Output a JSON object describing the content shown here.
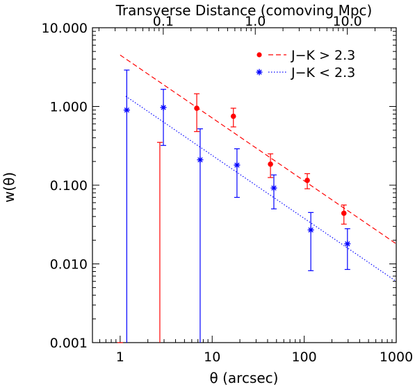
{
  "chart_data": {
    "type": "scatter",
    "title": "",
    "xlabel": "θ (arcsec)",
    "ylabel": "w(θ)",
    "top_axis_label": "Transverse Distance (comoving Mpc)",
    "x_scale": "log",
    "y_scale": "log",
    "xlim": [
      0.5,
      1000
    ],
    "ylim": [
      0.001,
      10
    ],
    "x_ticks": [
      {
        "value": 1,
        "label": "1"
      },
      {
        "value": 10,
        "label": "10"
      },
      {
        "value": 100,
        "label": "100"
      },
      {
        "value": 1000,
        "label": "1000"
      }
    ],
    "y_ticks": [
      {
        "value": 0.001,
        "label": "0.001"
      },
      {
        "value": 0.01,
        "label": "0.010"
      },
      {
        "value": 0.1,
        "label": "0.100"
      },
      {
        "value": 1,
        "label": "1.000"
      },
      {
        "value": 10,
        "label": "10.000"
      }
    ],
    "top_ticks": [
      {
        "value": 0.1,
        "label": "0.1"
      },
      {
        "value": 1.0,
        "label": "1.0"
      },
      {
        "value": 10.0,
        "label": "10.0"
      }
    ],
    "top_axis_theta_per_mpc": 29.4,
    "grid": false,
    "legend_position": "top-right",
    "series": [
      {
        "name": "J−K > 2.3",
        "color": "#ff0000",
        "marker": "circle",
        "line_style": "dashed",
        "fit_line": {
          "x": [
            1,
            1000
          ],
          "y": [
            4.5,
            0.018
          ]
        },
        "points": [
          {
            "x": 1.0,
            "y": null,
            "ylow": 0.001,
            "yhigh": 0.001
          },
          {
            "x": 2.7,
            "y": null,
            "ylow": 0.001,
            "yhigh": 0.35
          },
          {
            "x": 6.8,
            "y": 0.95,
            "ylow": 0.48,
            "yhigh": 1.45
          },
          {
            "x": 17.0,
            "y": 0.75,
            "ylow": 0.55,
            "yhigh": 0.95
          },
          {
            "x": 43.0,
            "y": 0.185,
            "ylow": 0.125,
            "yhigh": 0.25
          },
          {
            "x": 108.0,
            "y": 0.115,
            "ylow": 0.09,
            "yhigh": 0.14
          },
          {
            "x": 270.0,
            "y": 0.044,
            "ylow": 0.032,
            "yhigh": 0.056
          }
        ]
      },
      {
        "name": "J−K < 2.3",
        "color": "#0000ff",
        "marker": "asterisk",
        "line_style": "dotted",
        "fit_line": {
          "x": [
            1.15,
            1000
          ],
          "y": [
            1.35,
            0.006
          ]
        },
        "points": [
          {
            "x": 1.18,
            "y": 0.9,
            "ylow": 0.001,
            "yhigh": 2.9
          },
          {
            "x": 2.95,
            "y": 0.97,
            "ylow": 0.32,
            "yhigh": 1.65
          },
          {
            "x": 7.4,
            "y": 0.21,
            "ylow": 0.001,
            "yhigh": 0.52
          },
          {
            "x": 18.6,
            "y": 0.18,
            "ylow": 0.07,
            "yhigh": 0.29
          },
          {
            "x": 46.8,
            "y": 0.092,
            "ylow": 0.05,
            "yhigh": 0.135
          },
          {
            "x": 118.0,
            "y": 0.027,
            "ylow": 0.0082,
            "yhigh": 0.045
          },
          {
            "x": 295.0,
            "y": 0.018,
            "ylow": 0.0085,
            "yhigh": 0.028
          }
        ]
      }
    ]
  }
}
